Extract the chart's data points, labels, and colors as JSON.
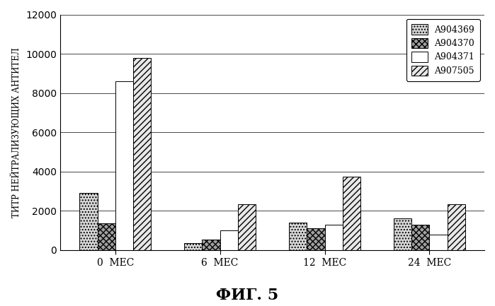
{
  "groups": [
    "0  МЕС",
    "6  МЕС",
    "12  МЕС",
    "24  МЕС"
  ],
  "series": {
    "A904369": [
      2900,
      350,
      1400,
      1600
    ],
    "A904370": [
      1350,
      550,
      1100,
      1300
    ],
    "A904371": [
      8600,
      1000,
      1300,
      800
    ],
    "A907505": [
      9800,
      2350,
      3750,
      2350
    ]
  },
  "ylabel": "ТИТР НЕЙТРАЛИЗУЮЩИХ АНТИТЕЛ",
  "caption": "ФИГ. 5",
  "ylim": [
    0,
    12000
  ],
  "yticks": [
    0,
    2000,
    4000,
    6000,
    8000,
    10000,
    12000
  ],
  "bar_width": 0.17,
  "background_color": "#ffffff",
  "legend_labels": [
    "A904369",
    "A904370",
    "A904371",
    "A907505"
  ],
  "hatch_patterns": [
    "....",
    "xxxx",
    "",
    "////"
  ],
  "bar_colors": [
    "#d8d8d8",
    "#a0a0a0",
    "#ffffff",
    "#e8e8e8"
  ],
  "edge_colors": [
    "#000000",
    "#000000",
    "#000000",
    "#000000"
  ]
}
